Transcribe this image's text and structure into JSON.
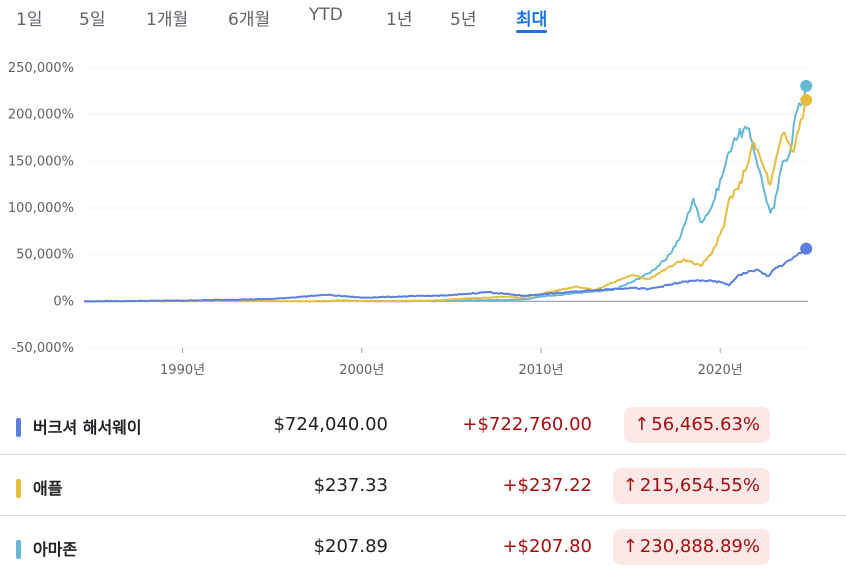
{
  "tabs": [
    {
      "label": "1일",
      "active": false
    },
    {
      "label": "5일",
      "active": false
    },
    {
      "label": "1개월",
      "active": false
    },
    {
      "label": "6개월",
      "active": false
    },
    {
      "label": "YTD",
      "active": false
    },
    {
      "label": "1년",
      "active": false
    },
    {
      "label": "5년",
      "active": false
    },
    {
      "label": "최대",
      "active": true
    }
  ],
  "colors": {
    "accent": "#1a73e8",
    "berkshire": "#5b7fde",
    "apple": "#e7bd3f",
    "amazon": "#67b8d6",
    "positive_red": "#a50e0e",
    "badge_bg": "#fce8e6",
    "grid": "#e8eaed",
    "zero_line": "#9aa0a6"
  },
  "chart_data": {
    "type": "line",
    "title": "",
    "xlabel": "",
    "ylabel": "",
    "ylim": [
      -50000,
      250000
    ],
    "yticks": [
      250000,
      200000,
      150000,
      100000,
      50000,
      0,
      -50000
    ],
    "ytick_labels": [
      "250,000%",
      "200,000%",
      "150,000%",
      "100,000%",
      "50,000%",
      "0%",
      "-50,000%"
    ],
    "xlim": [
      1984.5,
      2024.9
    ],
    "xticks": [
      1990,
      2000,
      2010,
      2020
    ],
    "xtick_labels": [
      "1990년",
      "2000년",
      "2010년",
      "2020년"
    ],
    "series": [
      {
        "name": "아마존",
        "color": "#67b8d6",
        "x": [
          1997.4,
          1999,
          2000,
          2002,
          2005,
          2007,
          2009,
          2010,
          2012,
          2014,
          2015,
          2016,
          2017,
          2017.8,
          2018.5,
          2018.9,
          2019.5,
          2020.2,
          2020.5,
          2020.8,
          2021.5,
          2021.8,
          2022.2,
          2022.5,
          2022.8,
          2023.0,
          2023.5,
          2023.9,
          2024.2,
          2024.5,
          2024.8
        ],
        "values": [
          0,
          1000,
          300,
          100,
          500,
          1200,
          2000,
          5000,
          9000,
          12000,
          20000,
          30000,
          45000,
          70000,
          110000,
          85000,
          100000,
          140000,
          160000,
          175000,
          185000,
          170000,
          140000,
          115000,
          95000,
          100000,
          150000,
          160000,
          200000,
          210000,
          230889
        ]
      },
      {
        "name": "애플",
        "color": "#e7bd3f",
        "x": [
          1984.5,
          1990,
          1995,
          1998,
          2000,
          2002,
          2004,
          2006,
          2008,
          2009,
          2010,
          2012,
          2013,
          2014,
          2015,
          2016,
          2017,
          2018,
          2018.9,
          2019.5,
          2020.2,
          2020.5,
          2021,
          2021.9,
          2022.5,
          2022.8,
          2023.5,
          2024.1,
          2024.3,
          2024.8
        ],
        "values": [
          0,
          300,
          200,
          100,
          500,
          300,
          800,
          3000,
          5000,
          4000,
          8000,
          16000,
          12000,
          20000,
          28000,
          24000,
          35000,
          45000,
          38000,
          50000,
          80000,
          110000,
          120000,
          170000,
          140000,
          125000,
          180000,
          160000,
          180000,
          215655
        ]
      },
      {
        "name": "버크셔 해서웨이",
        "color": "#5b7fde",
        "x": [
          1984.5,
          1990,
          1995,
          1998,
          2000,
          2002,
          2005,
          2007,
          2009,
          2010,
          2013,
          2015,
          2016,
          2018,
          2019,
          2020.2,
          2020.5,
          2021,
          2022,
          2022.7,
          2023,
          2024,
          2024.8
        ],
        "values": [
          0,
          800,
          2500,
          7000,
          4000,
          5000,
          6500,
          10000,
          6000,
          7500,
          12000,
          14500,
          13000,
          21000,
          22500,
          20000,
          17000,
          28000,
          34000,
          27000,
          34000,
          45000,
          56466
        ]
      }
    ]
  },
  "legend_rows": [
    {
      "name": "버크셔 해서웨이",
      "color": "#5b7fde",
      "price": "$724,040.00",
      "change": "+$722,760.00",
      "arrow": "↑",
      "pct": "56,465.63%"
    },
    {
      "name": "애플",
      "color": "#e7bd3f",
      "price": "$237.33",
      "change": "+$237.22",
      "arrow": "↑",
      "pct": "215,654.55%"
    },
    {
      "name": "아마존",
      "color": "#67b8d6",
      "price": "$207.89",
      "change": "+$207.80",
      "arrow": "↑",
      "pct": "230,888.89%"
    }
  ]
}
